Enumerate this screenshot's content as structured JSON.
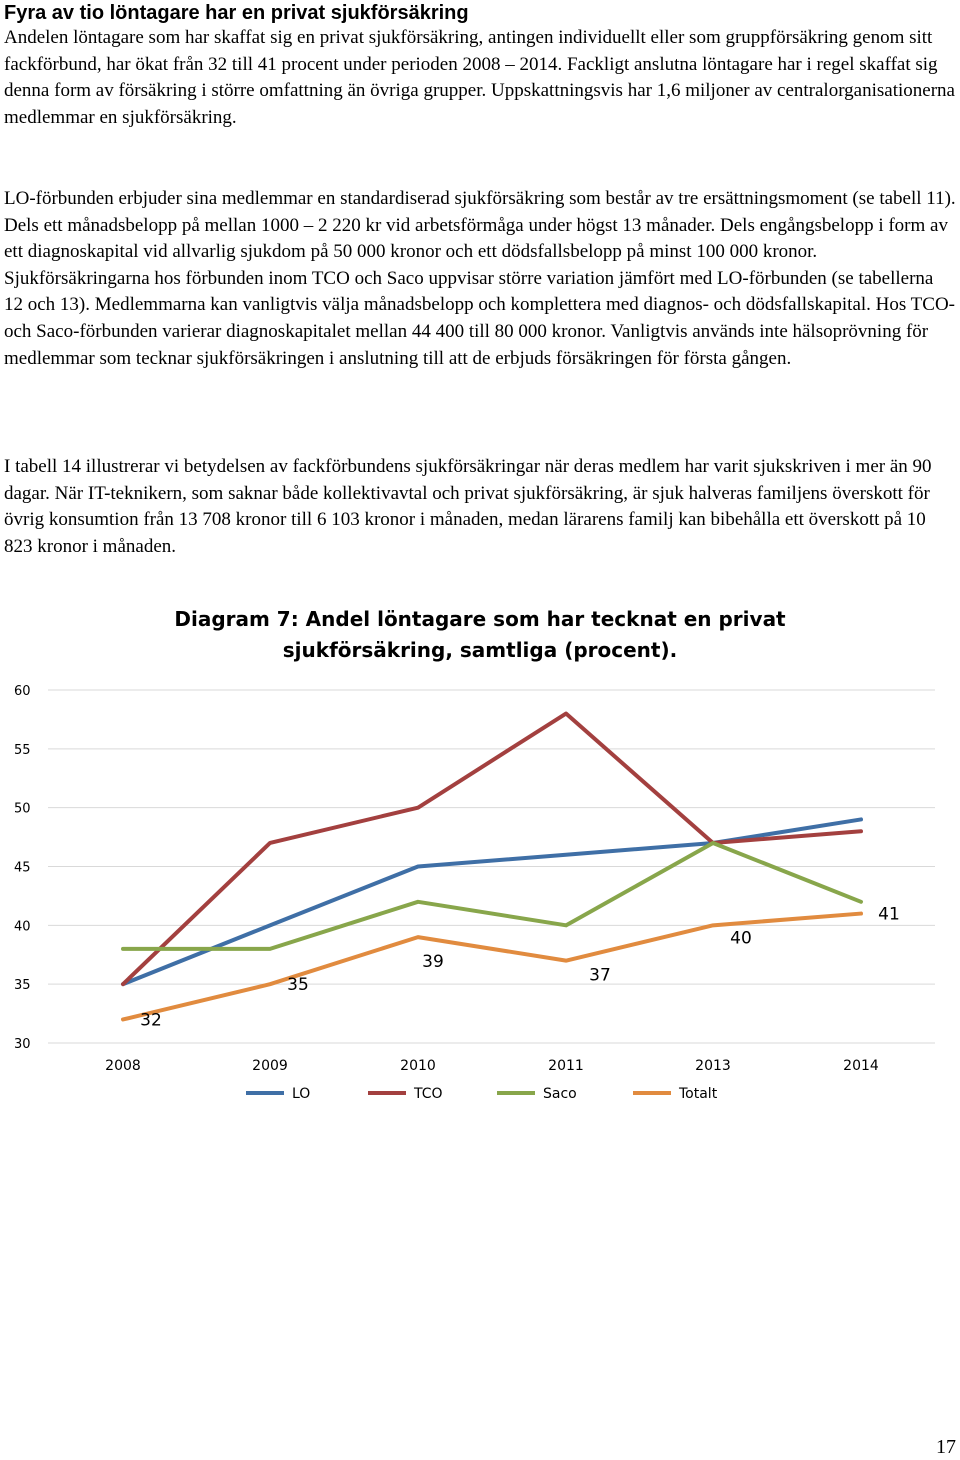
{
  "section": {
    "heading": "Fyra av tio löntagare har en privat sjukförsäkring",
    "paragraphs": [
      "Andelen löntagare som har skaffat sig en privat sjukförsäkring, antingen individuellt eller som gruppförsäkring genom sitt fackförbund, har ökat från 32 till 41 procent under perioden 2008 – 2014. Fackligt anslutna löntagare har i regel skaffat sig denna form av försäkring i större omfattning än övriga grupper. Uppskattningsvis har 1,6 miljoner av centralorganisationerna medlemmar en sjukförsäkring.",
      "LO-förbunden erbjuder sina medlemmar en standardiserad sjukförsäkring som består av tre ersättningsmoment (se tabell 11). Dels ett månadsbelopp på mellan 1000 – 2 220 kr vid arbetsförmåga under högst 13 månader. Dels engångsbelopp i form av ett diagnoskapital vid allvarlig sjukdom på 50 000 kronor och ett dödsfallsbelopp på minst 100 000 kronor. Sjukförsäkringarna hos förbunden inom TCO och Saco uppvisar större variation jämfört med LO-förbunden (se tabellerna 12 och 13). Medlemmarna kan vanligtvis välja månadsbelopp och komplettera med diagnos- och dödsfallskapital. Hos TCO- och Saco-förbunden varierar diagnoskapitalet mellan 44 400 till 80 000 kronor. Vanligtvis används inte hälsoprövning för medlemmar som tecknar sjukförsäkringen i anslutning till att de erbjuds försäkringen för första gången.",
      "I tabell 14 illustrerar vi betydelsen av fackförbundens sjukförsäkringar när deras medlem har varit sjukskriven i mer än 90 dagar.  När IT-teknikern, som saknar både kollektivavtal och privat sjukförsäkring, är sjuk halveras familjens överskott för övrig konsumtion från 13 708 kronor till 6 103 kronor i månaden, medan lärarens familj kan bibehålla ett överskott på 10 823 kronor i månaden."
    ]
  },
  "chart_data": {
    "type": "line",
    "title": "Diagram 7: Andel löntagare som har tecknat en privat sjukförsäkring, samtliga (procent).",
    "categories": [
      "2008",
      "2009",
      "2010",
      "2011",
      "2013",
      "2014"
    ],
    "ylim": [
      30,
      60
    ],
    "yticks": [
      30,
      35,
      40,
      45,
      50,
      55,
      60
    ],
    "grid": true,
    "legend_position": "bottom",
    "series": [
      {
        "name": "LO",
        "color": "#3F6FA6",
        "values": [
          35,
          40,
          45,
          46,
          47,
          49
        ]
      },
      {
        "name": "TCO",
        "color": "#A3403F",
        "values": [
          35,
          47,
          50,
          58,
          47,
          48
        ]
      },
      {
        "name": "Saco",
        "color": "#88A64B",
        "values": [
          38,
          38,
          42,
          40,
          47,
          42
        ]
      },
      {
        "name": "Totalt",
        "color": "#E18B3F",
        "values": [
          32,
          35,
          39,
          37,
          40,
          41
        ],
        "data_labels": [
          "32",
          "35",
          "39",
          "37",
          "40",
          "41"
        ]
      }
    ]
  },
  "page": {
    "number": "17"
  }
}
